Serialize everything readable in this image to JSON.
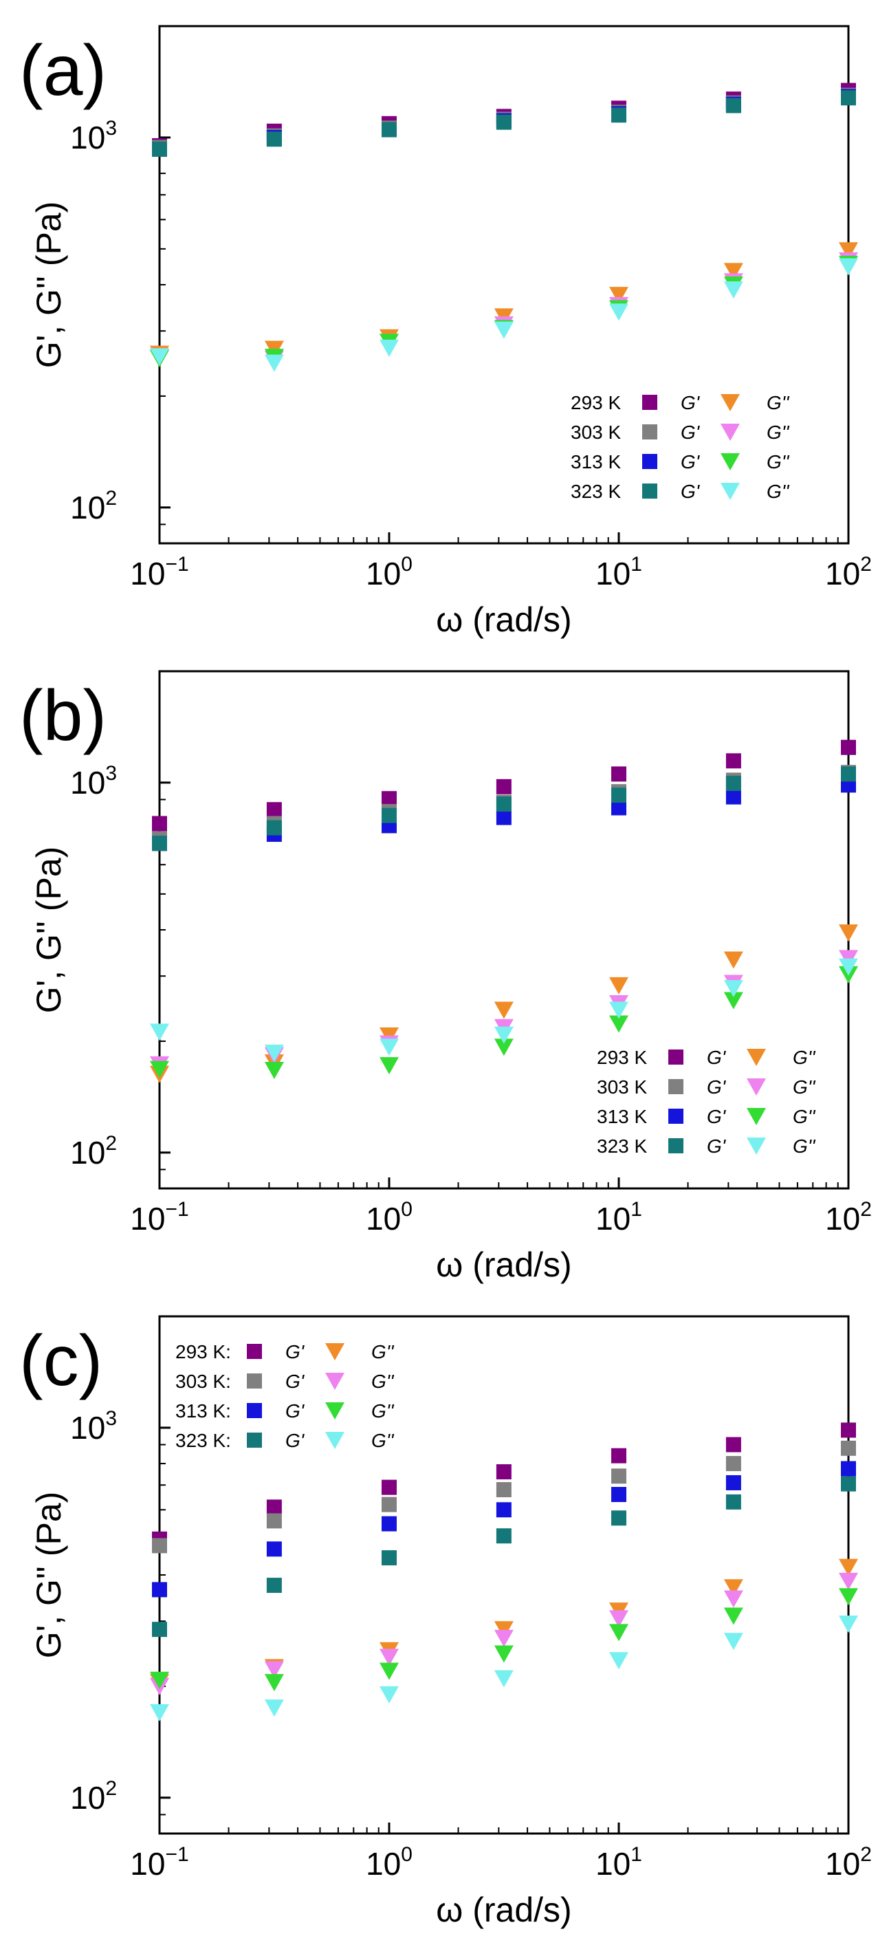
{
  "chart_data": [
    {
      "type": "scatter",
      "panel_label": "(a)",
      "xlabel": "ω (rad/s)",
      "ylabel": "G', G'' (Pa)",
      "xscale": "log",
      "yscale": "log",
      "xlim": [
        0.1,
        100
      ],
      "ylim": [
        80,
        2000
      ],
      "x_ticks": [
        {
          "base": "10",
          "exp": "−1"
        },
        {
          "base": "10",
          "exp": "0"
        },
        {
          "base": "10",
          "exp": "1"
        },
        {
          "base": "10",
          "exp": "2"
        }
      ],
      "y_ticks": [
        {
          "base": "10",
          "exp": "2",
          "value": 100
        },
        {
          "base": "10",
          "exp": "3",
          "value": 1000
        }
      ],
      "legend_position": "lower-right",
      "legend": [
        {
          "temp": "293 K",
          "gp": "G'",
          "gpp": "G''"
        },
        {
          "temp": "303 K",
          "gp": "G'",
          "gpp": "G''"
        },
        {
          "temp": "313 K",
          "gp": "G'",
          "gpp": "G''"
        },
        {
          "temp": "323 K",
          "gp": "G'",
          "gpp": "G''"
        }
      ],
      "x": [
        0.1,
        0.316,
        1,
        3.16,
        10,
        31.6,
        100
      ],
      "series": [
        {
          "name": "293 K G'",
          "marker": "square",
          "color": "#800080",
          "values": [
            950,
            1040,
            1090,
            1140,
            1200,
            1270,
            1340
          ]
        },
        {
          "name": "303 K G'",
          "marker": "square",
          "color": "#808080",
          "values": [
            940,
            1010,
            1060,
            1120,
            1170,
            1240,
            1300
          ]
        },
        {
          "name": "313 K G'",
          "marker": "square",
          "color": "#1414dc",
          "values": [
            930,
            1000,
            1050,
            1110,
            1160,
            1230,
            1290
          ]
        },
        {
          "name": "323 K G'",
          "marker": "square",
          "color": "#147878",
          "values": [
            930,
            990,
            1050,
            1100,
            1150,
            1220,
            1280
          ]
        },
        {
          "name": "293 K G''",
          "marker": "triangle-down",
          "color": "#f08c28",
          "values": [
            260,
            268,
            288,
            328,
            375,
            435,
            495
          ]
        },
        {
          "name": "303 K G''",
          "marker": "triangle-down",
          "color": "#ee82ee",
          "values": [
            255,
            252,
            280,
            312,
            352,
            408,
            465
          ]
        },
        {
          "name": "313 K G''",
          "marker": "triangle-down",
          "color": "#32dc32",
          "values": [
            253,
            255,
            280,
            305,
            345,
            400,
            455
          ]
        },
        {
          "name": "323 K G''",
          "marker": "triangle-down",
          "color": "#78f0f0",
          "values": [
            256,
            246,
            270,
            302,
            338,
            388,
            448
          ]
        }
      ]
    },
    {
      "type": "scatter",
      "panel_label": "(b)",
      "xlabel": "ω (rad/s)",
      "ylabel": "G', G'' (Pa)",
      "xscale": "log",
      "yscale": "log",
      "xlim": [
        0.1,
        100
      ],
      "ylim": [
        80,
        2000
      ],
      "x_ticks": [
        {
          "base": "10",
          "exp": "−1"
        },
        {
          "base": "10",
          "exp": "0"
        },
        {
          "base": "10",
          "exp": "1"
        },
        {
          "base": "10",
          "exp": "2"
        }
      ],
      "y_ticks": [
        {
          "base": "10",
          "exp": "2",
          "value": 100
        },
        {
          "base": "10",
          "exp": "3",
          "value": 1000
        }
      ],
      "legend_position": "lower-right",
      "legend": [
        {
          "temp": "293 K",
          "gp": "G'",
          "gpp": "G''"
        },
        {
          "temp": "303 K",
          "gp": "G'",
          "gpp": "G''"
        },
        {
          "temp": "313 K",
          "gp": "G'",
          "gpp": "G''"
        },
        {
          "temp": "323 K",
          "gp": "G'",
          "gpp": "G''"
        }
      ],
      "x": [
        0.1,
        0.316,
        1,
        3.16,
        10,
        31.6,
        100
      ],
      "series": [
        {
          "name": "293 K G'",
          "marker": "square",
          "color": "#800080",
          "values": [
            775,
            845,
            905,
            975,
            1055,
            1145,
            1245
          ]
        },
        {
          "name": "303 K G'",
          "marker": "square",
          "color": "#808080",
          "values": [
            705,
            775,
            835,
            885,
            945,
            1015,
            1065
          ]
        },
        {
          "name": "313 K G'",
          "marker": "square",
          "color": "#1414dc",
          "values": [
            685,
            725,
            765,
            805,
            855,
            915,
            985
          ]
        },
        {
          "name": "323 K G'",
          "marker": "square",
          "color": "#147878",
          "values": [
            685,
            755,
            815,
            875,
            925,
            995,
            1055
          ]
        },
        {
          "name": "293 K G''",
          "marker": "triangle-down",
          "color": "#f08c28",
          "values": [
            163,
            175,
            207,
            243,
            283,
            332,
            393
          ]
        },
        {
          "name": "303 K G''",
          "marker": "triangle-down",
          "color": "#ee82ee",
          "values": [
            173,
            183,
            197,
            218,
            253,
            287,
            335
          ]
        },
        {
          "name": "313 K G''",
          "marker": "triangle-down",
          "color": "#32dc32",
          "values": [
            168,
            167,
            172,
            193,
            223,
            258,
            303
          ]
        },
        {
          "name": "323 K G''",
          "marker": "triangle-down",
          "color": "#78f0f0",
          "values": [
            212,
            186,
            193,
            208,
            243,
            278,
            318
          ]
        }
      ]
    },
    {
      "type": "scatter",
      "panel_label": "(c)",
      "xlabel": "ω (rad/s)",
      "ylabel": "G', G'' (Pa)",
      "xscale": "log",
      "yscale": "log",
      "xlim": [
        0.1,
        100
      ],
      "ylim": [
        80,
        2000
      ],
      "x_ticks": [
        {
          "base": "10",
          "exp": "−1"
        },
        {
          "base": "10",
          "exp": "0"
        },
        {
          "base": "10",
          "exp": "1"
        },
        {
          "base": "10",
          "exp": "2"
        }
      ],
      "y_ticks": [
        {
          "base": "10",
          "exp": "2",
          "value": 100
        },
        {
          "base": "10",
          "exp": "3",
          "value": 1000
        }
      ],
      "legend_position": "top-left",
      "legend": [
        {
          "temp": "293 K:",
          "gp": "G'",
          "gpp": "G''"
        },
        {
          "temp": "303 K:",
          "gp": "G'",
          "gpp": "G''"
        },
        {
          "temp": "313 K:",
          "gp": "G'",
          "gpp": "G''"
        },
        {
          "temp": "323 K:",
          "gp": "G'",
          "gpp": "G''"
        }
      ],
      "x": [
        0.1,
        0.316,
        1,
        3.16,
        10,
        31.6,
        100
      ],
      "series": [
        {
          "name": "293 K G'",
          "marker": "square",
          "color": "#800080",
          "values": [
            500,
            610,
            690,
            760,
            840,
            900,
            985
          ]
        },
        {
          "name": "303 K G'",
          "marker": "square",
          "color": "#808080",
          "values": [
            480,
            560,
            620,
            680,
            740,
            800,
            880
          ]
        },
        {
          "name": "313 K G'",
          "marker": "square",
          "color": "#1414dc",
          "values": [
            365,
            470,
            550,
            600,
            660,
            710,
            775
          ]
        },
        {
          "name": "323 K G'",
          "marker": "square",
          "color": "#147878",
          "values": [
            285,
            375,
            445,
            510,
            570,
            630,
            705
          ]
        },
        {
          "name": "293 K G''",
          "marker": "triangle-down",
          "color": "#f08c28",
          "values": [
            205,
            225,
            250,
            285,
            320,
            370,
            420
          ]
        },
        {
          "name": "303 K G''",
          "marker": "triangle-down",
          "color": "#ee82ee",
          "values": [
            200,
            222,
            240,
            270,
            305,
            345,
            385
          ]
        },
        {
          "name": "313 K G''",
          "marker": "triangle-down",
          "color": "#32dc32",
          "values": [
            208,
            205,
            220,
            245,
            280,
            310,
            350
          ]
        },
        {
          "name": "323 K G''",
          "marker": "triangle-down",
          "color": "#78f0f0",
          "values": [
            170,
            175,
            190,
            210,
            235,
            265,
            295
          ]
        }
      ]
    }
  ]
}
